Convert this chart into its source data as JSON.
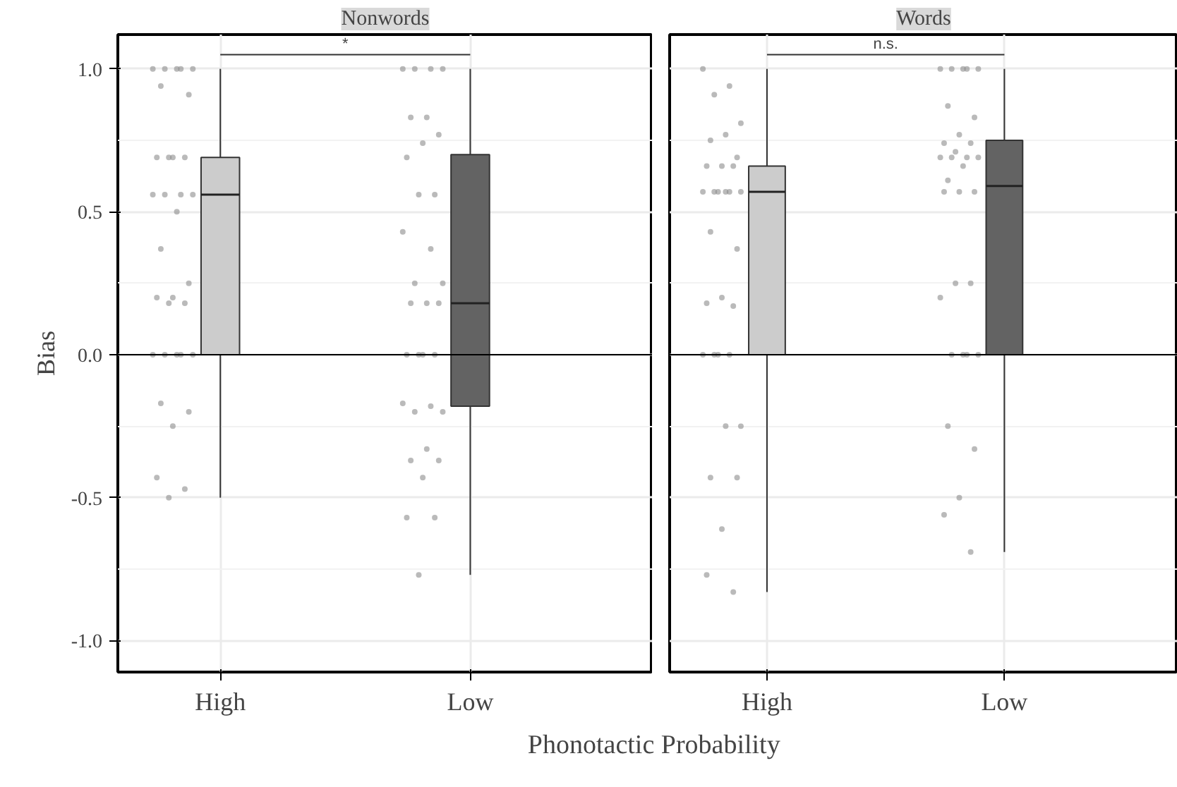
{
  "chart_data": [
    {
      "type": "box",
      "title": "Nonwords",
      "ylabel": "Bias",
      "xlabel": "Phonotactic Probability",
      "categories": [
        "High",
        "Low"
      ],
      "colors": [
        "#cccccc",
        "#636363"
      ],
      "boxes": [
        {
          "low": -0.5,
          "q1": 0,
          "median": 0.56,
          "q3": 0.69,
          "high": 1.0
        },
        {
          "low": -0.77,
          "q1": -0.18,
          "median": 0.18,
          "q3": 0.7,
          "high": 1.0
        }
      ],
      "series": [
        {
          "type": "scatter",
          "color": "#8c8c8c",
          "x": [
            "High",
            "High",
            "High",
            "High",
            "High",
            "High",
            "High",
            "High",
            "High",
            "High",
            "High",
            "High",
            "High",
            "High",
            "High",
            "High",
            "High",
            "High",
            "High",
            "High",
            "High",
            "High",
            "High",
            "High",
            "High",
            "High",
            "High",
            "High",
            "High",
            "High",
            "High",
            "High",
            "High"
          ],
          "values": [
            1,
            1,
            1,
            1,
            1,
            0.94,
            0.91,
            0.69,
            0.69,
            0.69,
            0.69,
            0.56,
            0.56,
            0.56,
            0.56,
            0.5,
            0.37,
            0.25,
            0.2,
            0.2,
            0.18,
            0.18,
            0,
            0,
            0,
            0,
            0,
            -0.17,
            -0.2,
            -0.25,
            -0.43,
            -0.47,
            -0.5
          ]
        },
        {
          "type": "scatter",
          "color": "#8c8c8c",
          "x": [
            "Low",
            "Low",
            "Low",
            "Low",
            "Low",
            "Low",
            "Low",
            "Low",
            "Low",
            "Low",
            "Low",
            "Low",
            "Low",
            "Low",
            "Low",
            "Low",
            "Low",
            "Low",
            "Low",
            "Low",
            "Low",
            "Low",
            "Low",
            "Low",
            "Low",
            "Low",
            "Low",
            "Low",
            "Low",
            "Low",
            "Low",
            "Low",
            "Low"
          ],
          "values": [
            1,
            1,
            1,
            1,
            0.83,
            0.83,
            0.77,
            0.74,
            0.69,
            0.56,
            0.56,
            0.43,
            0.37,
            0.25,
            0.25,
            0.18,
            0.18,
            0.18,
            0,
            0,
            0,
            0,
            -0.17,
            -0.18,
            -0.2,
            -0.2,
            -0.33,
            -0.37,
            -0.37,
            -0.43,
            -0.57,
            -0.57,
            -0.77
          ]
        }
      ],
      "ylim": [
        -1.11,
        1.12
      ],
      "yticks": [
        {
          "value": -1,
          "label": "-1.0"
        },
        {
          "value": -0.5,
          "label": "-0.5"
        },
        {
          "value": 0,
          "label": "0.0"
        },
        {
          "value": 0.5,
          "label": "0.5"
        },
        {
          "value": 1,
          "label": "1.0"
        }
      ],
      "ref_lines": [
        {
          "axis": "y",
          "value": 0,
          "color": "#000000"
        }
      ],
      "annotations": [
        "*"
      ],
      "grid": true
    },
    {
      "type": "box",
      "title": "Words",
      "tick_labels": "x",
      "categories": [
        "High",
        "Low"
      ],
      "colors": [
        "#cccccc",
        "#636363"
      ],
      "boxes": [
        {
          "low": -0.83,
          "q1": 0,
          "median": 0.57,
          "q3": 0.66,
          "high": 1.0
        },
        {
          "low": -0.69,
          "q1": 0,
          "median": 0.59,
          "q3": 0.75,
          "high": 1.0
        }
      ],
      "series": [
        {
          "type": "scatter",
          "color": "#8c8c8c",
          "x": [
            "High",
            "High",
            "High",
            "High",
            "High",
            "High",
            "High",
            "High",
            "High",
            "High",
            "High",
            "High",
            "High",
            "High",
            "High",
            "High",
            "High",
            "High",
            "High",
            "High",
            "High",
            "High",
            "High",
            "High",
            "High",
            "High",
            "High",
            "High",
            "High",
            "High",
            "High",
            "High"
          ],
          "values": [
            1,
            0.94,
            0.91,
            0.81,
            0.77,
            0.75,
            0.69,
            0.66,
            0.66,
            0.66,
            0.57,
            0.57,
            0.57,
            0.57,
            0.57,
            0.57,
            0.43,
            0.37,
            0.2,
            0.18,
            0.17,
            0,
            0,
            0,
            0,
            -0.25,
            -0.25,
            -0.43,
            -0.43,
            -0.61,
            -0.77,
            -0.83
          ]
        },
        {
          "type": "scatter",
          "color": "#8c8c8c",
          "x": [
            "Low",
            "Low",
            "Low",
            "Low",
            "Low",
            "Low",
            "Low",
            "Low",
            "Low",
            "Low",
            "Low",
            "Low",
            "Low",
            "Low",
            "Low",
            "Low",
            "Low",
            "Low",
            "Low",
            "Low",
            "Low",
            "Low",
            "Low",
            "Low",
            "Low",
            "Low",
            "Low",
            "Low",
            "Low",
            "Low",
            "Low",
            "Low"
          ],
          "values": [
            1,
            1,
            1,
            1,
            1,
            0.87,
            0.83,
            0.77,
            0.74,
            0.74,
            0.71,
            0.69,
            0.69,
            0.69,
            0.69,
            0.66,
            0.61,
            0.57,
            0.57,
            0.57,
            0.25,
            0.25,
            0.2,
            0,
            0,
            0,
            0,
            -0.25,
            -0.33,
            -0.5,
            -0.56,
            -0.69
          ]
        }
      ],
      "ylim": [
        -1.11,
        1.12
      ],
      "yticks": [
        -1,
        -0.5,
        0,
        0.5,
        1
      ],
      "ref_lines": [
        {
          "axis": "y",
          "value": 0,
          "color": "#000000"
        }
      ],
      "annotations": [
        "n.s."
      ],
      "grid": true
    }
  ]
}
